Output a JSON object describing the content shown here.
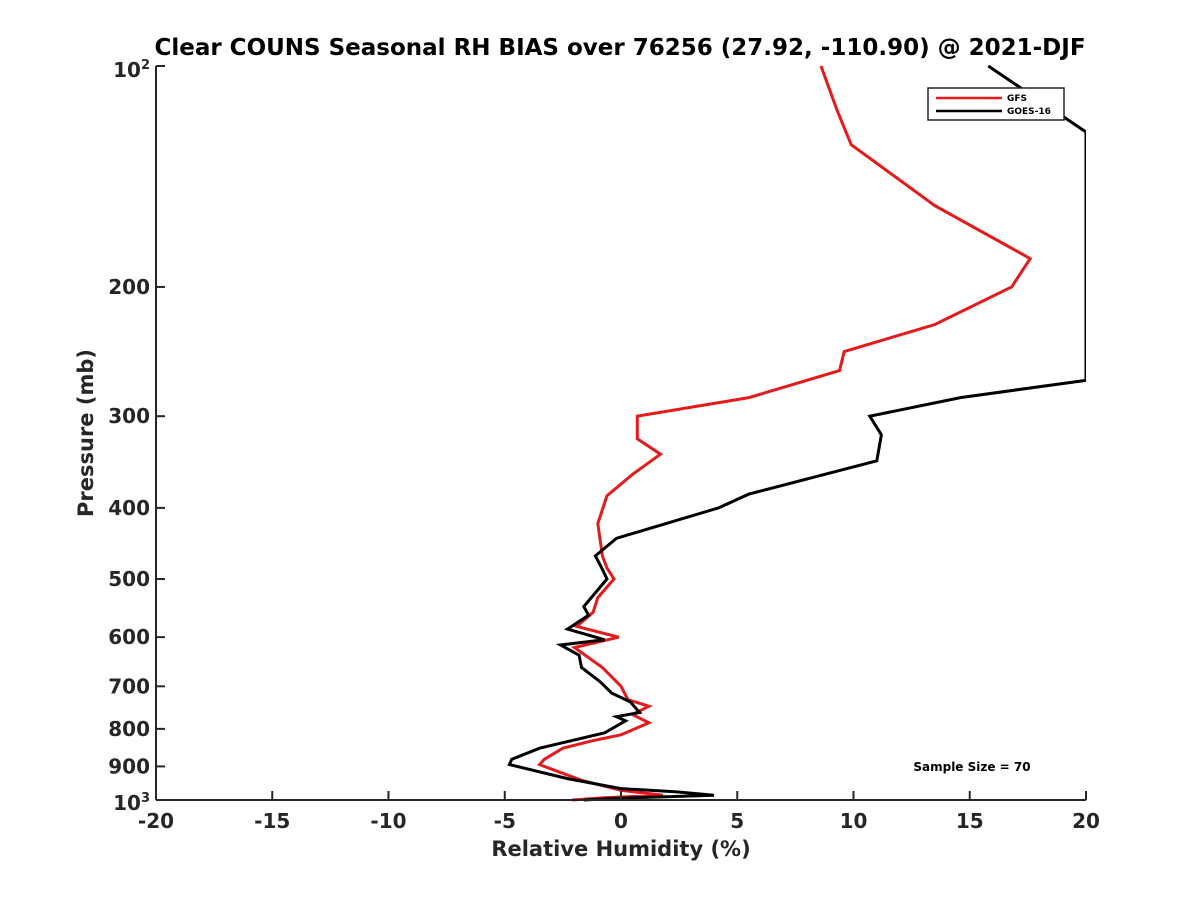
{
  "chart_data": {
    "type": "line",
    "title": "Clear COUNS Seasonal RH BIAS over 76256 (27.92, -110.90) @ 2021-DJF",
    "xlabel": "Relative Humidity (%)",
    "ylabel": "Pressure (mb)",
    "xlim": [
      -20,
      20
    ],
    "ylim": [
      100,
      1000
    ],
    "yscale": "log",
    "yreversed": true,
    "xticks": [
      -20,
      -15,
      -10,
      -5,
      0,
      5,
      10,
      15,
      20
    ],
    "xtick_labels": [
      "-20",
      "-15",
      "-10",
      "-5",
      "0",
      "5",
      "10",
      "15",
      "20"
    ],
    "yticks": [
      200,
      300,
      400,
      500,
      600,
      700,
      800,
      900
    ],
    "ytick_labels": [
      "200",
      "300",
      "400",
      "500",
      "600",
      "700",
      "800",
      "900"
    ],
    "ytick_top": {
      "base": "10",
      "exp": "2"
    },
    "ytick_bottom": {
      "base": "10",
      "exp": "3"
    },
    "grid": false,
    "legend_position": "top-right",
    "annotation": "Sample Size = 70",
    "series": [
      {
        "name": "GFS",
        "color": "#e41a1c",
        "points": [
          [
            8.6,
            100
          ],
          [
            9.3,
            115
          ],
          [
            9.9,
            128
          ],
          [
            13.5,
            155
          ],
          [
            17.6,
            183
          ],
          [
            16.8,
            200
          ],
          [
            13.5,
            225
          ],
          [
            9.6,
            245
          ],
          [
            9.4,
            260
          ],
          [
            5.5,
            283
          ],
          [
            0.7,
            300
          ],
          [
            0.7,
            322
          ],
          [
            1.7,
            338
          ],
          [
            0.5,
            360
          ],
          [
            -0.6,
            385
          ],
          [
            -1.0,
            420
          ],
          [
            -0.8,
            465
          ],
          [
            -0.6,
            483
          ],
          [
            -0.3,
            500
          ],
          [
            -1.0,
            530
          ],
          [
            -1.2,
            555
          ],
          [
            -1.9,
            580
          ],
          [
            -0.1,
            600
          ],
          [
            -2.0,
            620
          ],
          [
            -0.8,
            660
          ],
          [
            0.0,
            700
          ],
          [
            0.3,
            730
          ],
          [
            1.2,
            745
          ],
          [
            0.5,
            765
          ],
          [
            1.2,
            785
          ],
          [
            0.0,
            815
          ],
          [
            -1.2,
            830
          ],
          [
            -2.5,
            850
          ],
          [
            -3.3,
            880
          ],
          [
            -3.5,
            895
          ],
          [
            -1.7,
            940
          ],
          [
            0.0,
            970
          ],
          [
            1.8,
            985
          ],
          [
            -0.7,
            993
          ],
          [
            -2.1,
            1000
          ]
        ]
      },
      {
        "name": "GOES-16",
        "color": "#000000",
        "points": [
          [
            15.8,
            100
          ],
          [
            20.0,
            123
          ],
          [
            20.0,
            268
          ],
          [
            14.6,
            283
          ],
          [
            10.7,
            300
          ],
          [
            11.2,
            318
          ],
          [
            11.0,
            345
          ],
          [
            5.5,
            383
          ],
          [
            4.2,
            400
          ],
          [
            -0.2,
            440
          ],
          [
            -1.1,
            465
          ],
          [
            -0.8,
            485
          ],
          [
            -0.6,
            500
          ],
          [
            -1.6,
            545
          ],
          [
            -1.4,
            560
          ],
          [
            -2.3,
            585
          ],
          [
            -0.7,
            605
          ],
          [
            -2.6,
            615
          ],
          [
            -1.8,
            635
          ],
          [
            -1.7,
            660
          ],
          [
            -0.9,
            690
          ],
          [
            -0.4,
            715
          ],
          [
            0.4,
            735
          ],
          [
            0.8,
            760
          ],
          [
            -0.2,
            770
          ],
          [
            0.2,
            780
          ],
          [
            -0.7,
            810
          ],
          [
            -3.5,
            850
          ],
          [
            -4.7,
            880
          ],
          [
            -4.8,
            895
          ],
          [
            -2.3,
            935
          ],
          [
            0.0,
            965
          ],
          [
            2.4,
            975
          ],
          [
            4.0,
            985
          ],
          [
            -0.3,
            995
          ],
          [
            -1.6,
            1000
          ]
        ]
      }
    ]
  }
}
